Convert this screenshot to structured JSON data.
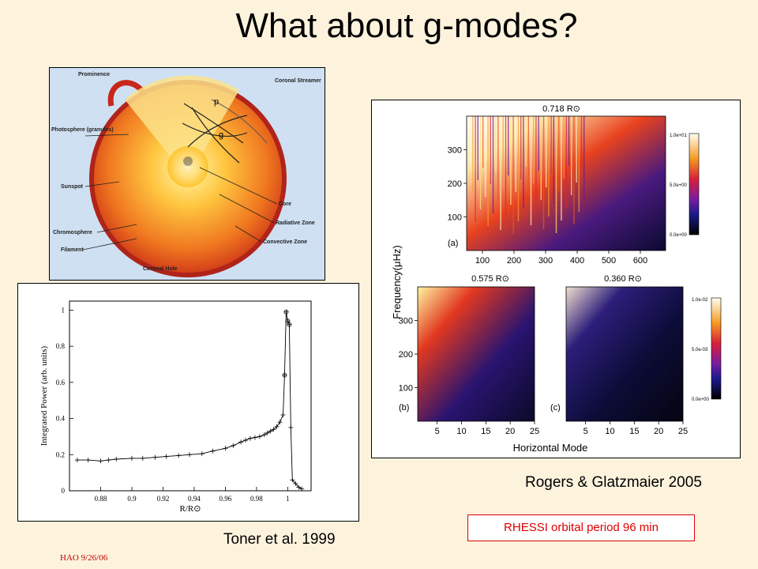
{
  "slide": {
    "title": "What about g-modes?",
    "rogers_caption": "Rogers & Glatzmaier 2005",
    "toner_caption": "Toner et al. 1999",
    "rhessi_note": "RHESSI orbital period 96 min",
    "footer": "HAO 9/26/06"
  },
  "sun_diagram": {
    "labels": {
      "prominence": "Prominence",
      "corona_streamer": "Coronal\nStreamer",
      "photosphere": "Photosphere\n(granules)",
      "sunspot": "Sunspot",
      "chromosphere": "Chromosphere",
      "filament": "Filament",
      "core": "Core",
      "radiative": "Radiative Zone",
      "convective": "Convective Zone",
      "coronal_hole": "Coronal Hole",
      "p_mode": "p",
      "g_mode": "g"
    },
    "colors": {
      "sky": "#cfe0f3",
      "sun_outer": "#e8481c",
      "sun_core": "#fff3a0",
      "flare": "#c8261a"
    }
  },
  "chart_data": [
    {
      "type": "scatter",
      "title": "",
      "xlabel": "R/R⊙",
      "ylabel": "Integrated Power (arb. units)",
      "xlim": [
        0.86,
        1.015
      ],
      "ylim": [
        0,
        1.05
      ],
      "xticks": [
        0.88,
        0.9,
        0.92,
        0.94,
        0.96,
        0.98,
        1
      ],
      "yticks": [
        0,
        0.2,
        0.4,
        0.6,
        0.8,
        1
      ],
      "xtick_labels": [
        "0.88",
        "0.9",
        "0.92",
        "0.94",
        "0.96",
        "0.98",
        "1"
      ],
      "ytick_labels": [
        "0",
        "0.2",
        "0.4",
        "0.6",
        "0.8",
        "1"
      ],
      "x": [
        0.865,
        0.872,
        0.88,
        0.885,
        0.89,
        0.9,
        0.907,
        0.915,
        0.922,
        0.93,
        0.937,
        0.945,
        0.952,
        0.96,
        0.965,
        0.97,
        0.973,
        0.976,
        0.979,
        0.982,
        0.985,
        0.987,
        0.989,
        0.991,
        0.993,
        0.995,
        0.997,
        0.998,
        0.999,
        1.0,
        1.001,
        1.002,
        1.003,
        1.005,
        1.007,
        1.009
      ],
      "y": [
        0.17,
        0.17,
        0.165,
        0.17,
        0.175,
        0.18,
        0.18,
        0.185,
        0.19,
        0.195,
        0.2,
        0.205,
        0.22,
        0.235,
        0.25,
        0.27,
        0.28,
        0.29,
        0.295,
        0.3,
        0.31,
        0.32,
        0.33,
        0.34,
        0.355,
        0.38,
        0.42,
        0.64,
        0.99,
        0.94,
        0.92,
        0.35,
        0.06,
        0.04,
        0.02,
        0.01
      ]
    },
    {
      "type": "heatmap",
      "panel": "(a)",
      "title": "0.718 R⊙",
      "xlabel": "",
      "ylabel": "Frequency(μHz)",
      "xlim": [
        50,
        680
      ],
      "ylim": [
        0,
        400
      ],
      "xticks": [
        100,
        200,
        300,
        400,
        500,
        600
      ],
      "yticks": [
        100,
        200,
        300
      ],
      "colorbar_ticks": [
        "1.0e+01",
        "5.0e+00",
        "0.0e+00"
      ]
    },
    {
      "type": "heatmap",
      "panel": "(b)",
      "title": "0.575 R⊙",
      "xlabel": "Horizontal Mode",
      "ylabel": "Frequency(μHz)",
      "xlim": [
        1,
        25
      ],
      "ylim": [
        0,
        400
      ],
      "xticks": [
        5,
        10,
        15,
        20,
        25
      ],
      "yticks": [
        100,
        200,
        300
      ]
    },
    {
      "type": "heatmap",
      "panel": "(c)",
      "title": "0.360 R⊙",
      "xlabel": "Horizontal Mode",
      "ylabel": "",
      "xlim": [
        1,
        25
      ],
      "ylim": [
        0,
        400
      ],
      "xticks": [
        5,
        10,
        15,
        20,
        25
      ],
      "yticks": [],
      "colorbar_ticks": [
        "1.0e-02",
        "5.0e-03",
        "0.0e+00"
      ]
    }
  ]
}
